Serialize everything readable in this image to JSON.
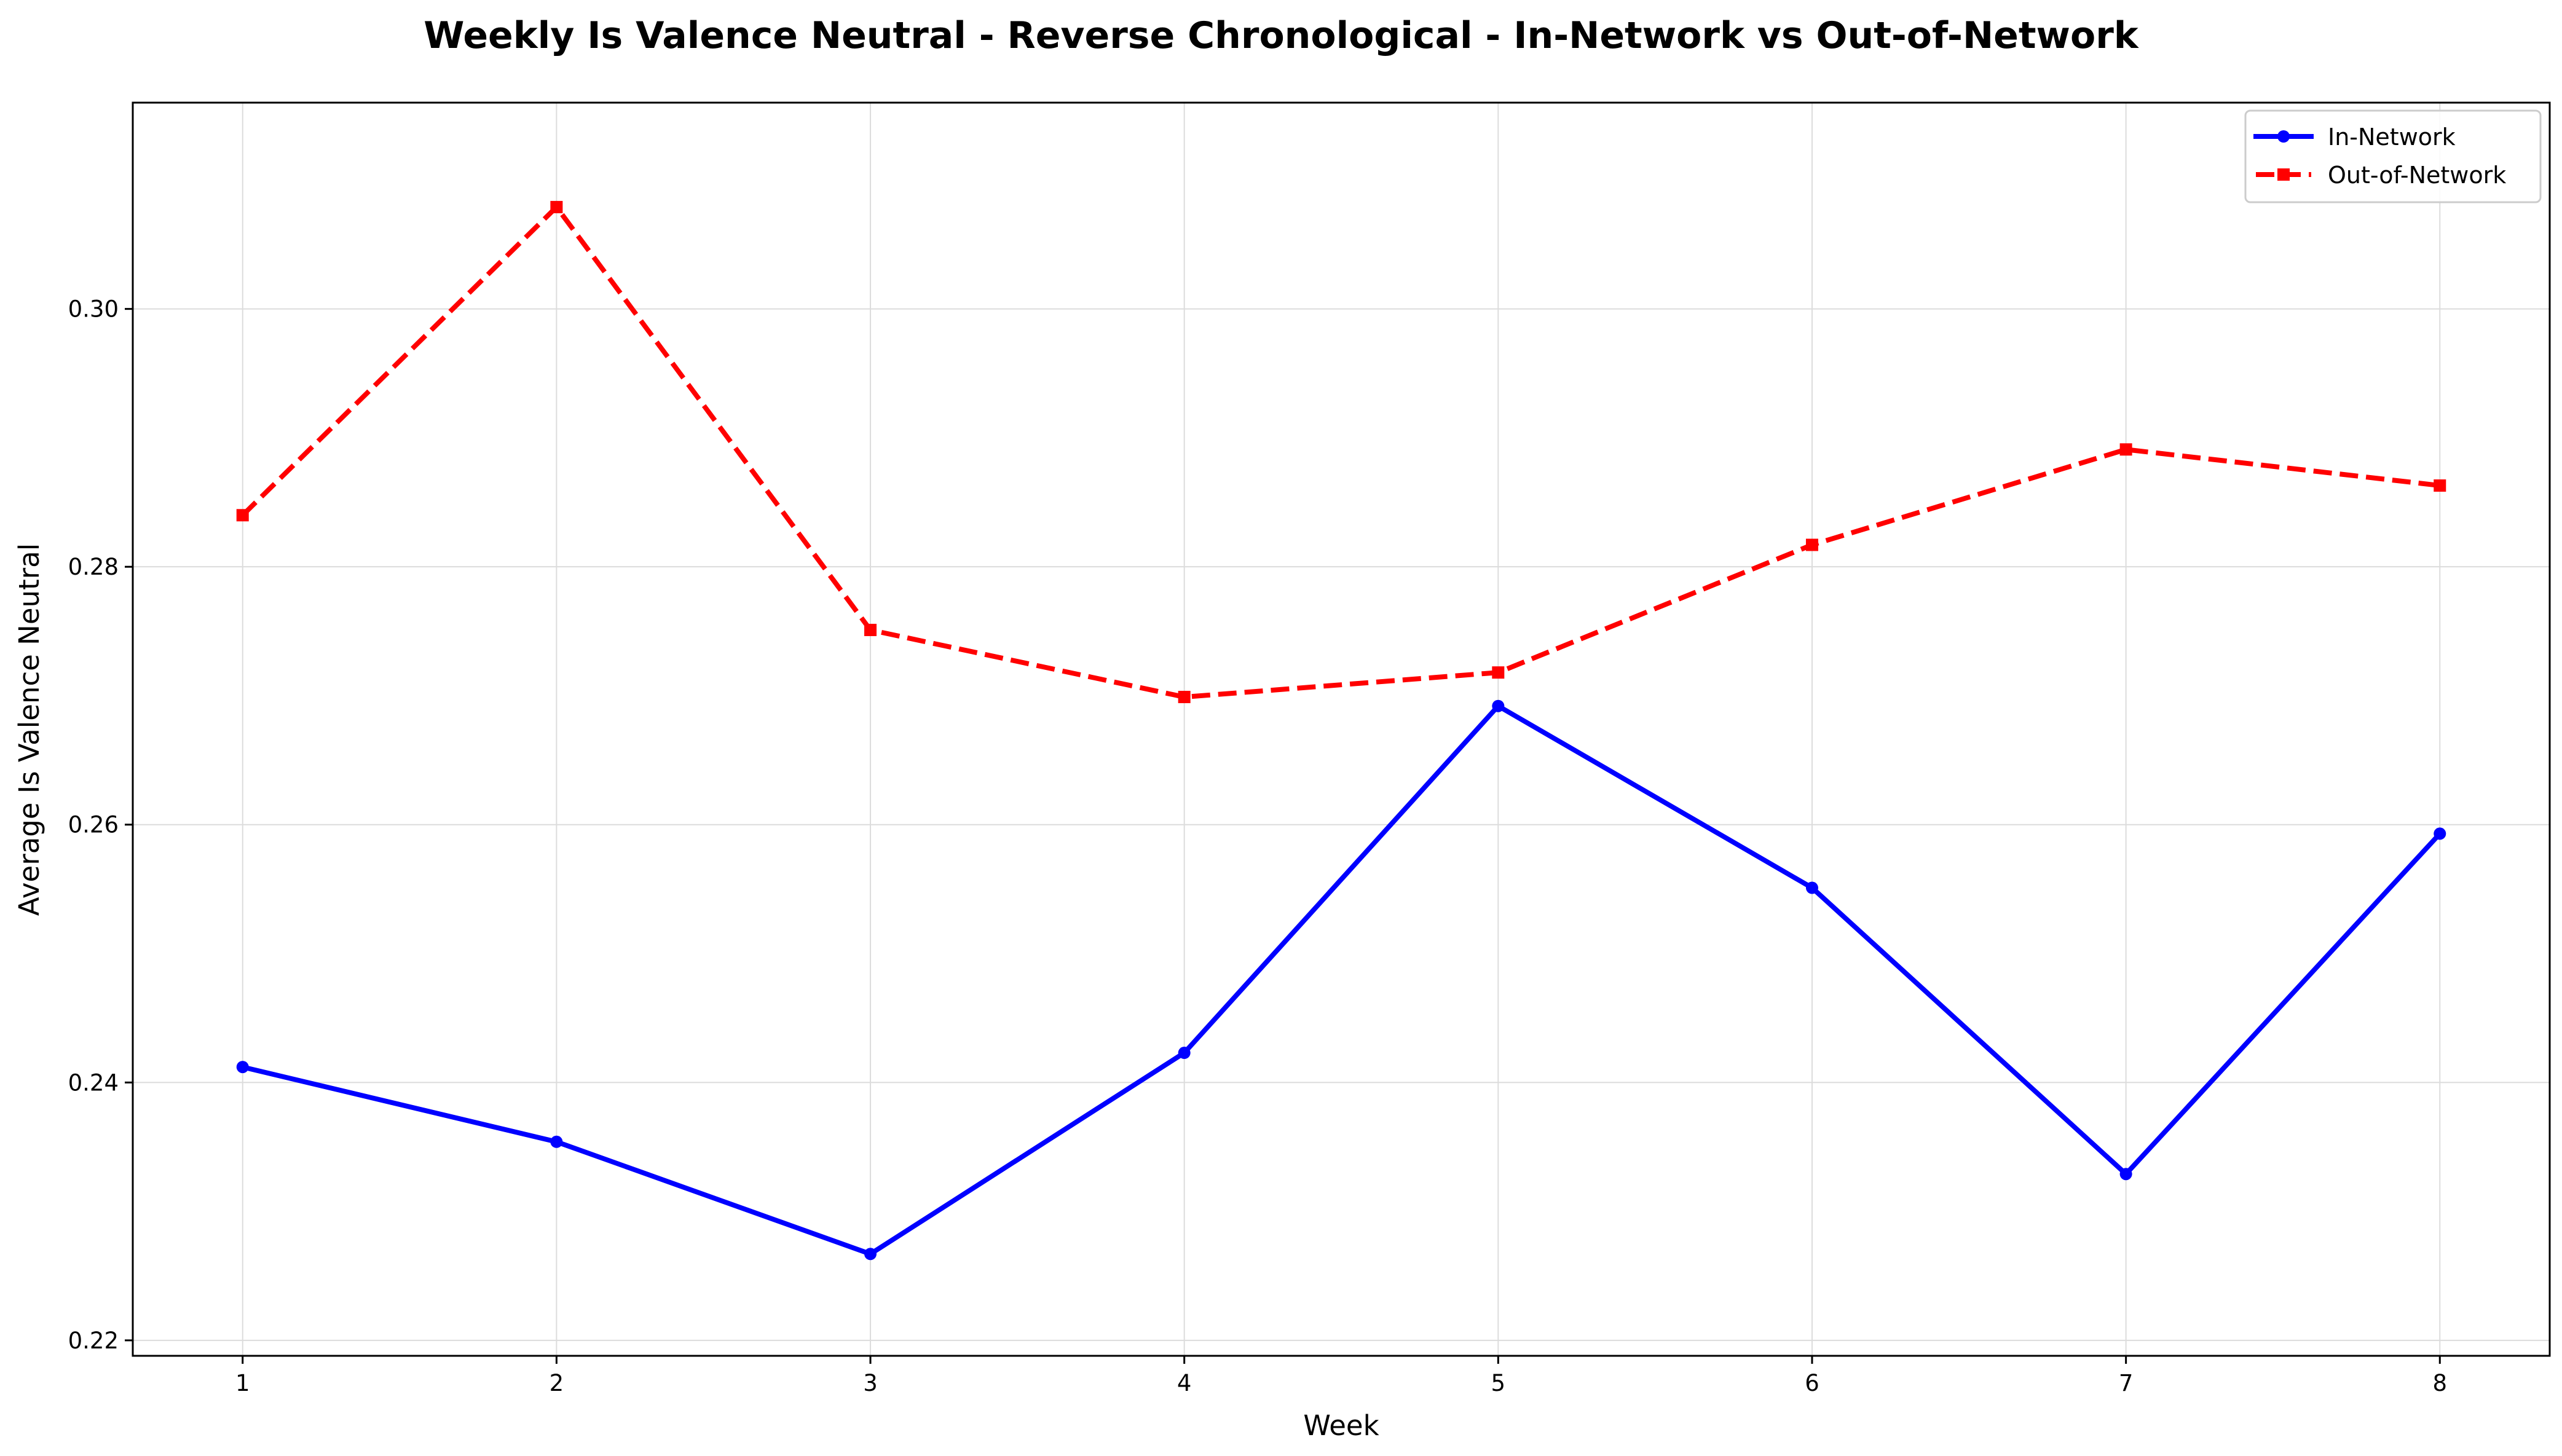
{
  "chart_data": {
    "type": "line",
    "title": "Weekly Is Valence Neutral - Reverse Chronological - In-Network vs Out-of-Network",
    "xlabel": "Week",
    "ylabel": "Average Is Valence Neutral",
    "x": [
      1,
      2,
      3,
      4,
      5,
      6,
      7,
      8
    ],
    "xlim": [
      0.65,
      8.35
    ],
    "ylim": [
      0.2188,
      0.316
    ],
    "xticks": [
      1,
      2,
      3,
      4,
      5,
      6,
      7,
      8
    ],
    "xtick_labels": [
      "1",
      "2",
      "3",
      "4",
      "5",
      "6",
      "7",
      "8"
    ],
    "yticks": [
      0.22,
      0.24,
      0.26,
      0.28,
      0.3
    ],
    "ytick_labels": [
      "0.22",
      "0.24",
      "0.26",
      "0.28",
      "0.30"
    ],
    "grid": true,
    "legend_position": "top-right",
    "series": [
      {
        "name": "In-Network",
        "color": "#0000ff",
        "line_style": "solid",
        "marker": "circle",
        "values": [
          0.2412,
          0.2354,
          0.2267,
          0.2423,
          0.2692,
          0.2551,
          0.2329,
          0.2593
        ]
      },
      {
        "name": "Out-of-Network",
        "color": "#ff0000",
        "line_style": "dashed",
        "marker": "square",
        "values": [
          0.284,
          0.3079,
          0.2751,
          0.2699,
          0.2718,
          0.2817,
          0.2891,
          0.2863
        ]
      }
    ]
  }
}
